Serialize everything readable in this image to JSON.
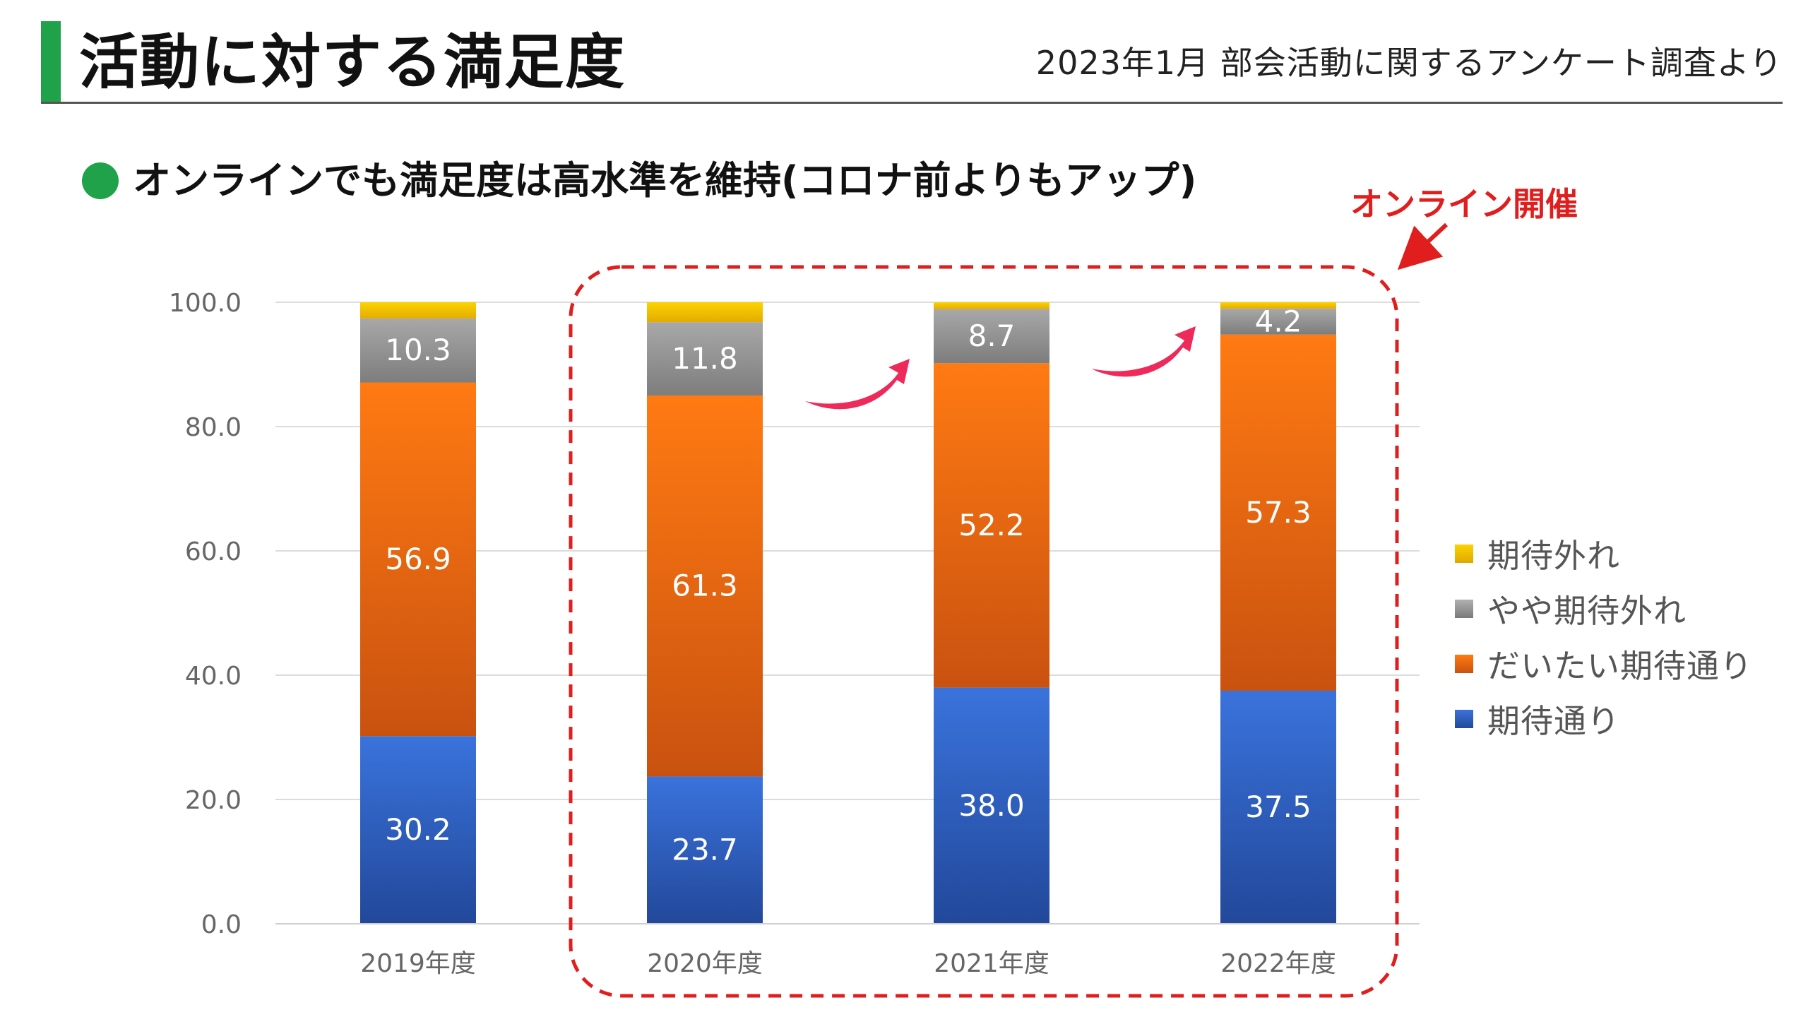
{
  "page": {
    "title": "活動に対する満足度",
    "source_note": "2023年1月 部会活動に関するアンケート調査より",
    "subtitle": "オンラインでも満足度は高水準を維持(コロナ前よりもアップ)",
    "online_label": "オンライン開催"
  },
  "colors": {
    "accent_green": "#1fa24a",
    "highlight_red": "#e01e1e",
    "arrow_pink": "#ee2a5a"
  },
  "chart_data": {
    "type": "bar",
    "stacked": true,
    "categories": [
      "2019年度",
      "2020年度",
      "2021年度",
      "2022年度"
    ],
    "ylim": [
      0,
      100
    ],
    "yticks": [
      "0.0",
      "20.0",
      "40.0",
      "60.0",
      "80.0",
      "100.0"
    ],
    "grid": true,
    "legend_position": "right",
    "series": [
      {
        "name": "期待通り",
        "values": [
          30.2,
          23.7,
          38.0,
          37.5
        ],
        "labels": [
          "30.2",
          "23.7",
          "38.0",
          "37.5"
        ],
        "color": "#2f66cf"
      },
      {
        "name": "だいたい期待通り",
        "values": [
          56.9,
          61.3,
          52.2,
          57.3
        ],
        "labels": [
          "56.9",
          "61.3",
          "52.2",
          "57.3"
        ],
        "color": "#f47216"
      },
      {
        "name": "やや期待外れ",
        "values": [
          10.3,
          11.8,
          8.7,
          4.2
        ],
        "labels": [
          "10.3",
          "11.8",
          "8.7",
          "4.2"
        ],
        "color": "#9b9b9b"
      },
      {
        "name": "期待外れ",
        "values": [
          2.6,
          3.2,
          1.1,
          1.0
        ],
        "labels": [
          "",
          "",
          "",
          ""
        ],
        "color": "#f5c400"
      }
    ]
  }
}
